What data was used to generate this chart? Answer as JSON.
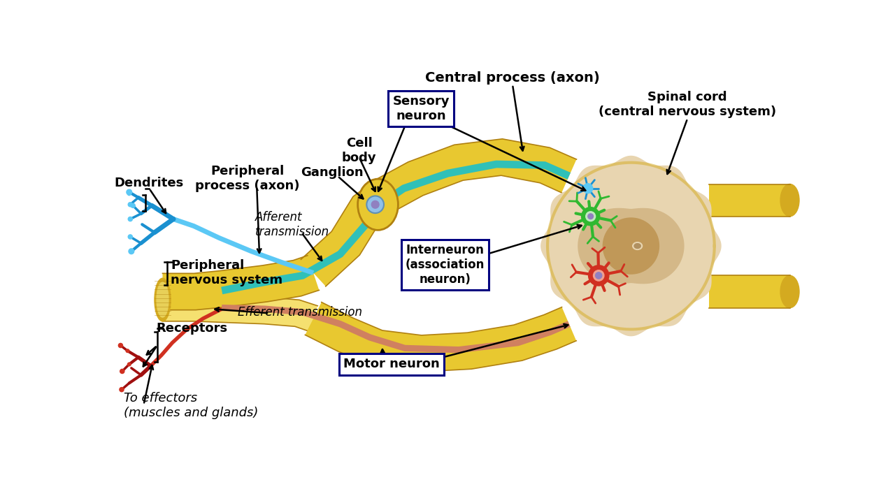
{
  "background_color": "#ffffff",
  "labels": {
    "dendrites": "Dendrites",
    "peripheral_process": "Peripheral\nprocess (axon)",
    "afferent": "Afferent\ntransmission",
    "peripheral_ns": "Peripheral\nnervous system",
    "receptors": "Receptors",
    "efferent": "Efferent transmission",
    "to_effectors": "To effectors\n(muscles and glands)",
    "ganglion": "Ganglion",
    "cell_body": "Cell\nbody",
    "sensory_neuron": "Sensory\nneuron",
    "central_process": "Central process (axon)",
    "interneuron": "Interneuron\n(association\nneuron)",
    "motor_neuron": "Motor neuron",
    "spinal_cord": "Spinal cord\n(central nervous system)"
  },
  "colors": {
    "blue_neuron": "#5bc8f5",
    "blue_dark": "#1a90d0",
    "red_neuron": "#d03020",
    "red_dark": "#a01010",
    "red_light": "#e87060",
    "yellow_nerve": "#e8c830",
    "yellow_light": "#f5e070",
    "yellow_mid": "#d4aa20",
    "yellow_dark": "#b08010",
    "spinal_outer": "#e8d5b0",
    "spinal_mid": "#d4b888",
    "spinal_inner": "#c09858",
    "green_neuron": "#30b830",
    "green_dark": "#208020",
    "teal_line": "#30c0b8",
    "purple_nucleus": "#9080c0",
    "box_border": "#000080",
    "ganglion_blue": "#90c0e8"
  }
}
